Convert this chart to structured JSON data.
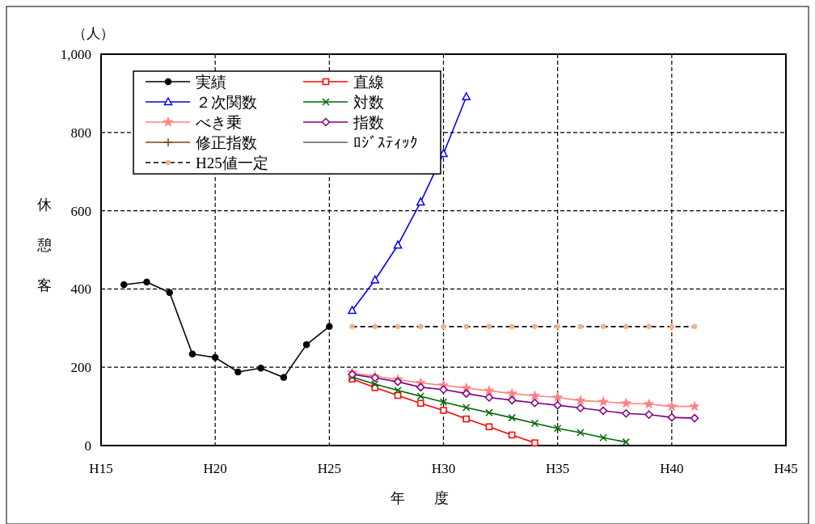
{
  "chart_data": {
    "type": "line",
    "xlabel": "年　　度",
    "ylabel": "休憩客",
    "annotations": [
      "（人）"
    ],
    "categories": [
      "H15",
      null,
      null,
      null,
      null,
      "H20",
      null,
      null,
      null,
      null,
      "H25",
      null,
      null,
      null,
      null,
      "H30",
      null,
      null,
      null,
      null,
      "H35",
      null,
      null,
      null,
      null,
      "H40",
      null,
      null,
      null,
      null,
      "H45"
    ],
    "ylim": [
      0,
      1000
    ],
    "yticks": [
      0,
      200,
      400,
      600,
      800,
      {
        "value": 1000,
        "label": "1,000"
      }
    ],
    "grid": true,
    "legend": "top left",
    "series": [
      {
        "name": "実績",
        "color": "#000000",
        "marker": "circle",
        "line_style": "solid",
        "values": [
          null,
          411,
          418,
          391,
          234,
          225,
          188,
          198,
          174,
          258,
          304,
          null,
          null,
          null,
          null,
          null,
          null,
          null,
          null,
          null,
          null,
          null,
          null,
          null,
          null,
          null,
          null,
          null,
          null,
          null,
          null
        ]
      },
      {
        "name": "直線",
        "color": "#ff0000",
        "marker": "square",
        "line_style": "solid",
        "values": [
          null,
          null,
          null,
          null,
          null,
          null,
          null,
          null,
          null,
          null,
          null,
          170,
          148,
          128,
          108,
          90,
          68,
          48,
          27,
          7,
          null,
          null,
          null,
          null,
          null,
          null,
          null,
          null,
          null,
          null,
          null
        ]
      },
      {
        "name": "２次関数",
        "color": "#0000ff",
        "marker": "triangle",
        "line_style": "solid",
        "values": [
          null,
          null,
          null,
          null,
          null,
          null,
          null,
          null,
          null,
          null,
          null,
          345,
          423,
          512,
          622,
          746,
          891,
          null,
          null,
          null,
          null,
          null,
          null,
          null,
          null,
          null,
          null,
          null,
          null,
          null,
          null
        ]
      },
      {
        "name": "対数",
        "color": "#006600",
        "marker": "cross",
        "line_style": "solid",
        "values": [
          null,
          null,
          null,
          null,
          null,
          null,
          null,
          null,
          null,
          null,
          null,
          175,
          157,
          141,
          126,
          111,
          97,
          84,
          71,
          57,
          44,
          33,
          20,
          9,
          null,
          null,
          null,
          null,
          null,
          null,
          null
        ]
      },
      {
        "name": "べき乗",
        "color": "#ff8080",
        "marker": "star",
        "line_style": "solid",
        "values": [
          null,
          null,
          null,
          null,
          null,
          null,
          null,
          null,
          null,
          null,
          null,
          186,
          177,
          169,
          160,
          154,
          147,
          140,
          133,
          127,
          123,
          115,
          112,
          108,
          106,
          100,
          100,
          null,
          null,
          null,
          null
        ]
      },
      {
        "name": "指数",
        "color": "#800080",
        "marker": "diamond",
        "line_style": "solid",
        "values": [
          null,
          null,
          null,
          null,
          null,
          null,
          null,
          null,
          null,
          null,
          null,
          182,
          173,
          163,
          149,
          143,
          133,
          123,
          116,
          109,
          103,
          96,
          89,
          82,
          79,
          72,
          70,
          null,
          null,
          null,
          null
        ]
      },
      {
        "name": "修正指数",
        "color": "#7f4410",
        "marker": "plus",
        "line_style": "solid",
        "values": [
          null,
          null,
          null,
          null,
          null,
          null,
          null,
          null,
          null,
          null,
          null,
          null,
          null,
          null,
          null,
          null,
          null,
          null,
          null,
          null,
          null,
          null,
          null,
          null,
          null,
          null,
          null,
          null,
          null,
          null,
          null
        ]
      },
      {
        "name": "ﾛｼﾞｽﾃｨｯｸ",
        "color": "#606060",
        "marker": "none",
        "line_style": "solid",
        "values": [
          null,
          null,
          null,
          null,
          null,
          null,
          null,
          null,
          null,
          null,
          null,
          null,
          null,
          null,
          null,
          null,
          null,
          null,
          null,
          null,
          null,
          null,
          null,
          null,
          null,
          null,
          null,
          null,
          null,
          null,
          null
        ]
      },
      {
        "name": "H25値一定",
        "color": "#000000",
        "marker": "circle",
        "line_style": "dashed",
        "colors": [
          null,
          null,
          null,
          null,
          null,
          null,
          null,
          null,
          null,
          null,
          null,
          "#f4b183",
          "#f4b183",
          "#f4b183",
          "#f4b183",
          "#f4b183",
          "#f4b183",
          "#f4b183",
          "#f4b183",
          "#f4b183",
          "#f4b183",
          "#f4b183",
          "#f4b183",
          "#f4b183",
          "#f4b183",
          "#f4b183",
          "#f4b183",
          null,
          null,
          null,
          null
        ],
        "values": [
          null,
          null,
          null,
          null,
          null,
          null,
          null,
          null,
          null,
          null,
          null,
          304,
          304,
          304,
          304,
          304,
          304,
          304,
          304,
          304,
          304,
          304,
          304,
          304,
          304,
          304,
          304,
          null,
          null,
          null,
          null
        ]
      }
    ]
  }
}
